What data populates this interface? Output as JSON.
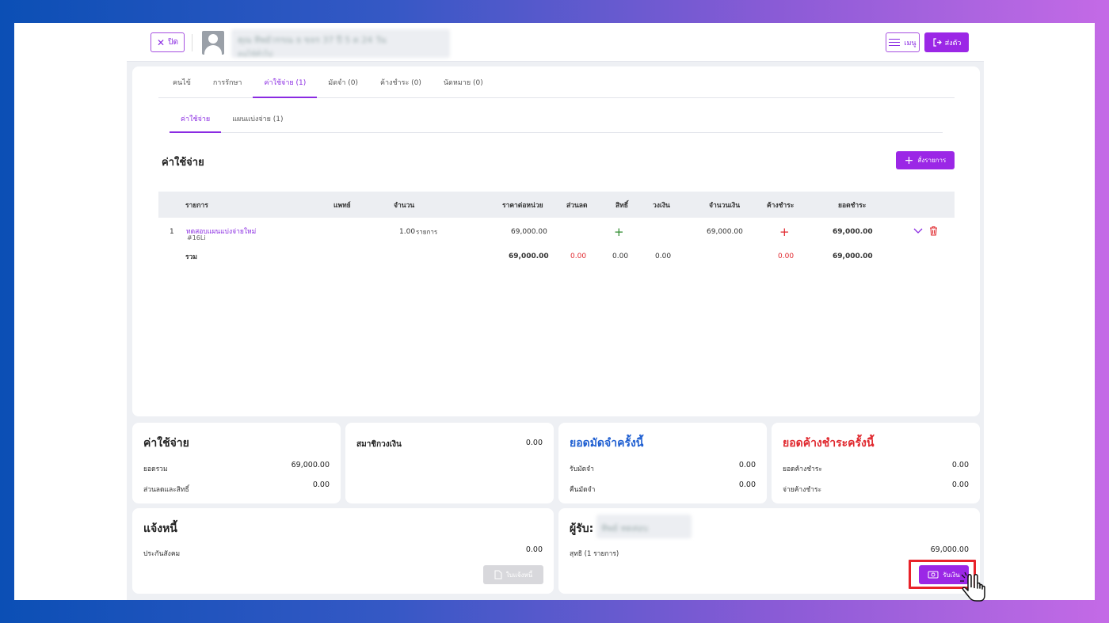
{
  "topbar": {
    "close_label": "ปิด",
    "menu_label": "เมนู",
    "send_label": "ส่งตัว",
    "patient_blurred_line1": "คุณ ทิพย์วรรณ ธ ขจร 37 ปี 5 ด 24 วัน",
    "patient_blurred_line2": "คนไข้ทั่วไป"
  },
  "tabs": [
    {
      "label": "คนไข้"
    },
    {
      "label": "การรักษา"
    },
    {
      "label": "ค่าใช้จ่าย (1)"
    },
    {
      "label": "มัดจำ (0)"
    },
    {
      "label": "ค้างชำระ (0)"
    },
    {
      "label": "นัดหมาย (0)"
    }
  ],
  "subtabs": [
    {
      "label": "ค่าใช้จ่าย"
    },
    {
      "label": "แผนแบ่งจ่าย (1)"
    }
  ],
  "section_title": "ค่าใช้จ่าย",
  "order_button_label": "สั่งรายการ",
  "table": {
    "headers": {
      "item": "รายการ",
      "doctor": "แพทย์",
      "qty": "จำนวน",
      "unit_price": "ราคาต่อหน่วย",
      "discount": "ส่วนลด",
      "right": "สิทธิ์",
      "limit": "วงเงิน",
      "amount": "จำนวนเงิน",
      "outstanding": "ค้างชำระ",
      "total_due": "ยอดชำระ"
    },
    "rows": [
      {
        "index": "1",
        "name": "ทดสอบแผนแบ่งจ่ายใหม่",
        "code": "#16Li",
        "qty": "1.00",
        "unit": "รายการ",
        "unit_price": "69,000.00",
        "amount": "69,000.00",
        "total_due": "69,000.00"
      }
    ],
    "summary": {
      "label": "รวม",
      "unit_price": "69,000.00",
      "discount": "0.00",
      "right": "0.00",
      "limit": "0.00",
      "outstanding": "0.00",
      "total_due": "69,000.00"
    }
  },
  "cards": {
    "expense": {
      "title": "ค่าใช้จ่าย",
      "total_label": "ยอดรวม",
      "total_value": "69,000.00",
      "discount_label": "ส่วนลดและสิทธิ์",
      "discount_value": "0.00"
    },
    "member": {
      "title": "สมาชิกวงเงิน",
      "value": "0.00"
    },
    "deposit": {
      "title": "ยอดมัดจำครั้งนี้",
      "receive_label": "รับมัดจำ",
      "receive_value": "0.00",
      "return_label": "คืนมัดจำ",
      "return_value": "0.00"
    },
    "outstanding": {
      "title": "ยอดค้างชำระครั้งนี้",
      "total_label": "ยอดค้างชำระ",
      "total_value": "0.00",
      "pay_label": "จ่ายค้างชำระ",
      "pay_value": "0.00"
    },
    "invoice": {
      "title": "แจ้งหนี้",
      "item_label": "ประกันสังคม",
      "item_value": "0.00",
      "button_label": "ใบแจ้งหนี้"
    },
    "payer": {
      "title": "ผู้รับ:",
      "blurred_name": "ทิพย์ ทดสอบ",
      "net_label": "สุทธิ (1 รายการ)",
      "net_value": "69,000.00",
      "button_label": "รับเงิน"
    }
  },
  "colors": {
    "accent": "#9b27e6",
    "danger": "#e0282e",
    "blue": "#1f5fd1",
    "success": "#2e8b2e"
  }
}
